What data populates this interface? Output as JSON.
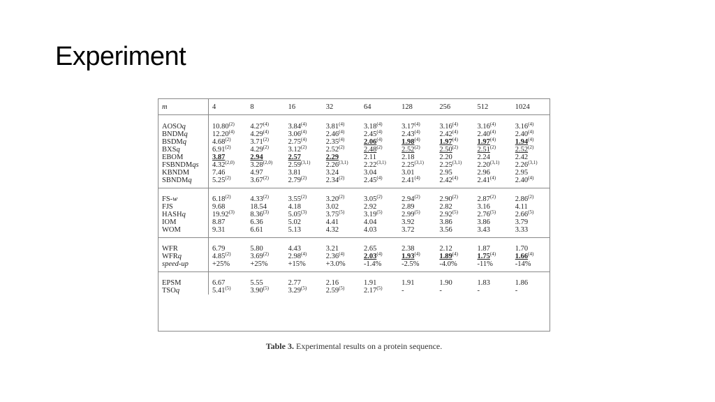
{
  "slide": {
    "title": "Experiment"
  },
  "table": {
    "header_label": "m",
    "columns": [
      "4",
      "8",
      "16",
      "32",
      "64",
      "128",
      "256",
      "512",
      "1024"
    ],
    "groups": [
      [
        {
          "name": "AOSO",
          "suffix": "q",
          "cells": [
            {
              "v": "10.80",
              "s": "(2)"
            },
            {
              "v": "4.27",
              "s": "(4)"
            },
            {
              "v": "3.84",
              "s": "(4)"
            },
            {
              "v": "3.81",
              "s": "(4)"
            },
            {
              "v": "3.18",
              "s": "(4)"
            },
            {
              "v": "3.17",
              "s": "(4)"
            },
            {
              "v": "3.16",
              "s": "(4)"
            },
            {
              "v": "3.16",
              "s": "(4)"
            },
            {
              "v": "3.16",
              "s": "(4)"
            }
          ]
        },
        {
          "name": "BNDM",
          "suffix": "q",
          "cells": [
            {
              "v": "12.20",
              "s": "(4)"
            },
            {
              "v": "4.29",
              "s": "(4)"
            },
            {
              "v": "3.06",
              "s": "(4)"
            },
            {
              "v": "2.46",
              "s": "(4)"
            },
            {
              "v": "2.45",
              "s": "(4)"
            },
            {
              "v": "2.43",
              "s": "(4)"
            },
            {
              "v": "2.42",
              "s": "(4)"
            },
            {
              "v": "2.40",
              "s": "(4)"
            },
            {
              "v": "2.40",
              "s": "(4)"
            }
          ]
        },
        {
          "name": "BSDM",
          "suffix": "q",
          "cells": [
            {
              "v": "4.68",
              "s": "(2)"
            },
            {
              "v": "3.71",
              "s": "(2)"
            },
            {
              "v": "2.75",
              "s": "(4)"
            },
            {
              "v": "2.35",
              "s": "(4)"
            },
            {
              "v": "2.06",
              "s": "(4)",
              "f": "bu"
            },
            {
              "v": "1.98",
              "s": "(4)",
              "f": "bu"
            },
            {
              "v": "1.97",
              "s": "(4)",
              "f": "bu"
            },
            {
              "v": "1.97",
              "s": "(4)",
              "f": "bu"
            },
            {
              "v": "1.94",
              "s": "(4)",
              "f": "bu"
            }
          ]
        },
        {
          "name": "BXS",
          "suffix": "q",
          "cells": [
            {
              "v": "6.91",
              "s": "(2)"
            },
            {
              "v": "4.29",
              "s": "(2)"
            },
            {
              "v": "3.12",
              "s": "(2)"
            },
            {
              "v": "2.52",
              "s": "(2)"
            },
            {
              "v": "2.48",
              "s": "(2)",
              "f": "u"
            },
            {
              "v": "2.52",
              "s": "(2)",
              "f": "u"
            },
            {
              "v": "2.50",
              "s": "(2)",
              "f": "u"
            },
            {
              "v": "2.51",
              "s": "(2)",
              "f": "u"
            },
            {
              "v": "2.52",
              "s": "(2)",
              "f": "u"
            }
          ]
        },
        {
          "name": "EBOM",
          "suffix": "",
          "cells": [
            {
              "v": "3.87",
              "s": "",
              "f": "bu"
            },
            {
              "v": "2.94",
              "s": "",
              "f": "bu"
            },
            {
              "v": "2.57",
              "s": "",
              "f": "bu"
            },
            {
              "v": "2.29",
              "s": "",
              "f": "bu"
            },
            {
              "v": "2.11",
              "s": ""
            },
            {
              "v": "2.18",
              "s": ""
            },
            {
              "v": "2.20",
              "s": ""
            },
            {
              "v": "2.24",
              "s": ""
            },
            {
              "v": "2.42",
              "s": ""
            }
          ]
        },
        {
          "name": "FSBNDM",
          "suffix": "qs",
          "cells": [
            {
              "v": "4.32",
              "s": "(2,0)"
            },
            {
              "v": "3.28",
              "s": "(2,0)"
            },
            {
              "v": "2.59",
              "s": "(3,1)"
            },
            {
              "v": "2.26",
              "s": "(3,1)"
            },
            {
              "v": "2.22",
              "s": "(3,1)"
            },
            {
              "v": "2.25",
              "s": "(3,1)"
            },
            {
              "v": "2.25",
              "s": "(3,1)"
            },
            {
              "v": "2.20",
              "s": "(3,1)"
            },
            {
              "v": "2.26",
              "s": "(3,1)"
            }
          ]
        },
        {
          "name": "KBNDM",
          "suffix": "",
          "cells": [
            {
              "v": "7.46",
              "s": ""
            },
            {
              "v": "4.97",
              "s": ""
            },
            {
              "v": "3.81",
              "s": ""
            },
            {
              "v": "3.24",
              "s": ""
            },
            {
              "v": "3.04",
              "s": ""
            },
            {
              "v": "3.01",
              "s": ""
            },
            {
              "v": "2.95",
              "s": ""
            },
            {
              "v": "2.96",
              "s": ""
            },
            {
              "v": "2.95",
              "s": ""
            }
          ]
        },
        {
          "name": "SBNDM",
          "suffix": "q",
          "cells": [
            {
              "v": "5.25",
              "s": "(2)"
            },
            {
              "v": "3.67",
              "s": "(2)"
            },
            {
              "v": "2.79",
              "s": "(2)"
            },
            {
              "v": "2.34",
              "s": "(2)"
            },
            {
              "v": "2.45",
              "s": "(4)"
            },
            {
              "v": "2.41",
              "s": "(4)"
            },
            {
              "v": "2.42",
              "s": "(4)"
            },
            {
              "v": "2.41",
              "s": "(4)"
            },
            {
              "v": "2.40",
              "s": "(4)"
            }
          ]
        }
      ],
      [
        {
          "name": "FS-",
          "suffix": "w",
          "cells": [
            {
              "v": "6.18",
              "s": "(2)"
            },
            {
              "v": "4.33",
              "s": "(2)"
            },
            {
              "v": "3.55",
              "s": "(2)"
            },
            {
              "v": "3.20",
              "s": "(2)"
            },
            {
              "v": "3.05",
              "s": "(2)"
            },
            {
              "v": "2.94",
              "s": "(2)"
            },
            {
              "v": "2.90",
              "s": "(2)"
            },
            {
              "v": "2.87",
              "s": "(2)"
            },
            {
              "v": "2.86",
              "s": "(2)"
            }
          ]
        },
        {
          "name": "FJS",
          "suffix": "",
          "cells": [
            {
              "v": "9.68",
              "s": ""
            },
            {
              "v": "18.54",
              "s": ""
            },
            {
              "v": "4.18",
              "s": ""
            },
            {
              "v": "3.02",
              "s": ""
            },
            {
              "v": "2.92",
              "s": ""
            },
            {
              "v": "2.89",
              "s": ""
            },
            {
              "v": "2.82",
              "s": ""
            },
            {
              "v": "3.16",
              "s": ""
            },
            {
              "v": "4.11",
              "s": ""
            }
          ]
        },
        {
          "name": "HASH",
          "suffix": "q",
          "cells": [
            {
              "v": "19.92",
              "s": "(3)"
            },
            {
              "v": "8.36",
              "s": "(3)"
            },
            {
              "v": "5.05",
              "s": "(3)"
            },
            {
              "v": "3.75",
              "s": "(5)"
            },
            {
              "v": "3.19",
              "s": "(5)"
            },
            {
              "v": "2.99",
              "s": "(5)"
            },
            {
              "v": "2.92",
              "s": "(5)"
            },
            {
              "v": "2.76",
              "s": "(5)"
            },
            {
              "v": "2.66",
              "s": "(5)"
            }
          ]
        },
        {
          "name": "IOM",
          "suffix": "",
          "cells": [
            {
              "v": "8.87",
              "s": ""
            },
            {
              "v": "6.36",
              "s": ""
            },
            {
              "v": "5.02",
              "s": ""
            },
            {
              "v": "4.41",
              "s": ""
            },
            {
              "v": "4.04",
              "s": ""
            },
            {
              "v": "3.92",
              "s": ""
            },
            {
              "v": "3.86",
              "s": ""
            },
            {
              "v": "3.86",
              "s": ""
            },
            {
              "v": "3.79",
              "s": ""
            }
          ]
        },
        {
          "name": "WOM",
          "suffix": "",
          "cells": [
            {
              "v": "9.31",
              "s": ""
            },
            {
              "v": "6.61",
              "s": ""
            },
            {
              "v": "5.13",
              "s": ""
            },
            {
              "v": "4.32",
              "s": ""
            },
            {
              "v": "4.03",
              "s": ""
            },
            {
              "v": "3.72",
              "s": ""
            },
            {
              "v": "3.56",
              "s": ""
            },
            {
              "v": "3.43",
              "s": ""
            },
            {
              "v": "3.33",
              "s": ""
            }
          ]
        }
      ],
      [
        {
          "name": "WFR",
          "suffix": "",
          "cells": [
            {
              "v": "6.79",
              "s": ""
            },
            {
              "v": "5.80",
              "s": ""
            },
            {
              "v": "4.43",
              "s": ""
            },
            {
              "v": "3.21",
              "s": ""
            },
            {
              "v": "2.65",
              "s": ""
            },
            {
              "v": "2.38",
              "s": ""
            },
            {
              "v": "2.12",
              "s": ""
            },
            {
              "v": "1.87",
              "s": ""
            },
            {
              "v": "1.70",
              "s": ""
            }
          ]
        },
        {
          "name": "WFR",
          "suffix": "q",
          "cells": [
            {
              "v": "4.85",
              "s": "(2)"
            },
            {
              "v": "3.69",
              "s": "(2)"
            },
            {
              "v": "2.98",
              "s": "(4)"
            },
            {
              "v": "2.36",
              "s": "(4)"
            },
            {
              "v": "2.03",
              "s": "(4)",
              "f": "bu"
            },
            {
              "v": "1.93",
              "s": "(4)",
              "f": "bu"
            },
            {
              "v": "1.89",
              "s": "(4)",
              "f": "bu"
            },
            {
              "v": "1.75",
              "s": "(4)",
              "f": "bu"
            },
            {
              "v": "1.66",
              "s": "(4)",
              "f": "bu"
            }
          ]
        },
        {
          "name": "",
          "suffix": "speed-up",
          "cells": [
            {
              "v": "+25%",
              "s": ""
            },
            {
              "v": "+25%",
              "s": ""
            },
            {
              "v": "+15%",
              "s": ""
            },
            {
              "v": "+3.0%",
              "s": ""
            },
            {
              "v": "-1.4%",
              "s": ""
            },
            {
              "v": "-2.5%",
              "s": ""
            },
            {
              "v": "-4.0%",
              "s": ""
            },
            {
              "v": "-11%",
              "s": ""
            },
            {
              "v": "-14%",
              "s": ""
            }
          ]
        }
      ],
      [
        {
          "name": "EPSM",
          "suffix": "",
          "cells": [
            {
              "v": "6.67",
              "s": ""
            },
            {
              "v": "5.55",
              "s": ""
            },
            {
              "v": "2.77",
              "s": ""
            },
            {
              "v": "2.16",
              "s": ""
            },
            {
              "v": "1.91",
              "s": ""
            },
            {
              "v": "1.91",
              "s": ""
            },
            {
              "v": "1.90",
              "s": ""
            },
            {
              "v": "1.83",
              "s": ""
            },
            {
              "v": "1.86",
              "s": ""
            }
          ]
        },
        {
          "name": "TSO",
          "suffix": "q",
          "cells": [
            {
              "v": "5.41",
              "s": "(5)"
            },
            {
              "v": "3.90",
              "s": "(5)"
            },
            {
              "v": "3.29",
              "s": "(5)"
            },
            {
              "v": "2.59",
              "s": "(5)"
            },
            {
              "v": "2.17",
              "s": "(5)"
            },
            {
              "v": "-",
              "s": ""
            },
            {
              "v": "-",
              "s": ""
            },
            {
              "v": "-",
              "s": ""
            },
            {
              "v": "-",
              "s": ""
            }
          ]
        }
      ]
    ]
  },
  "caption": {
    "label": "Table 3.",
    "text": " Experimental results on a protein sequence."
  }
}
